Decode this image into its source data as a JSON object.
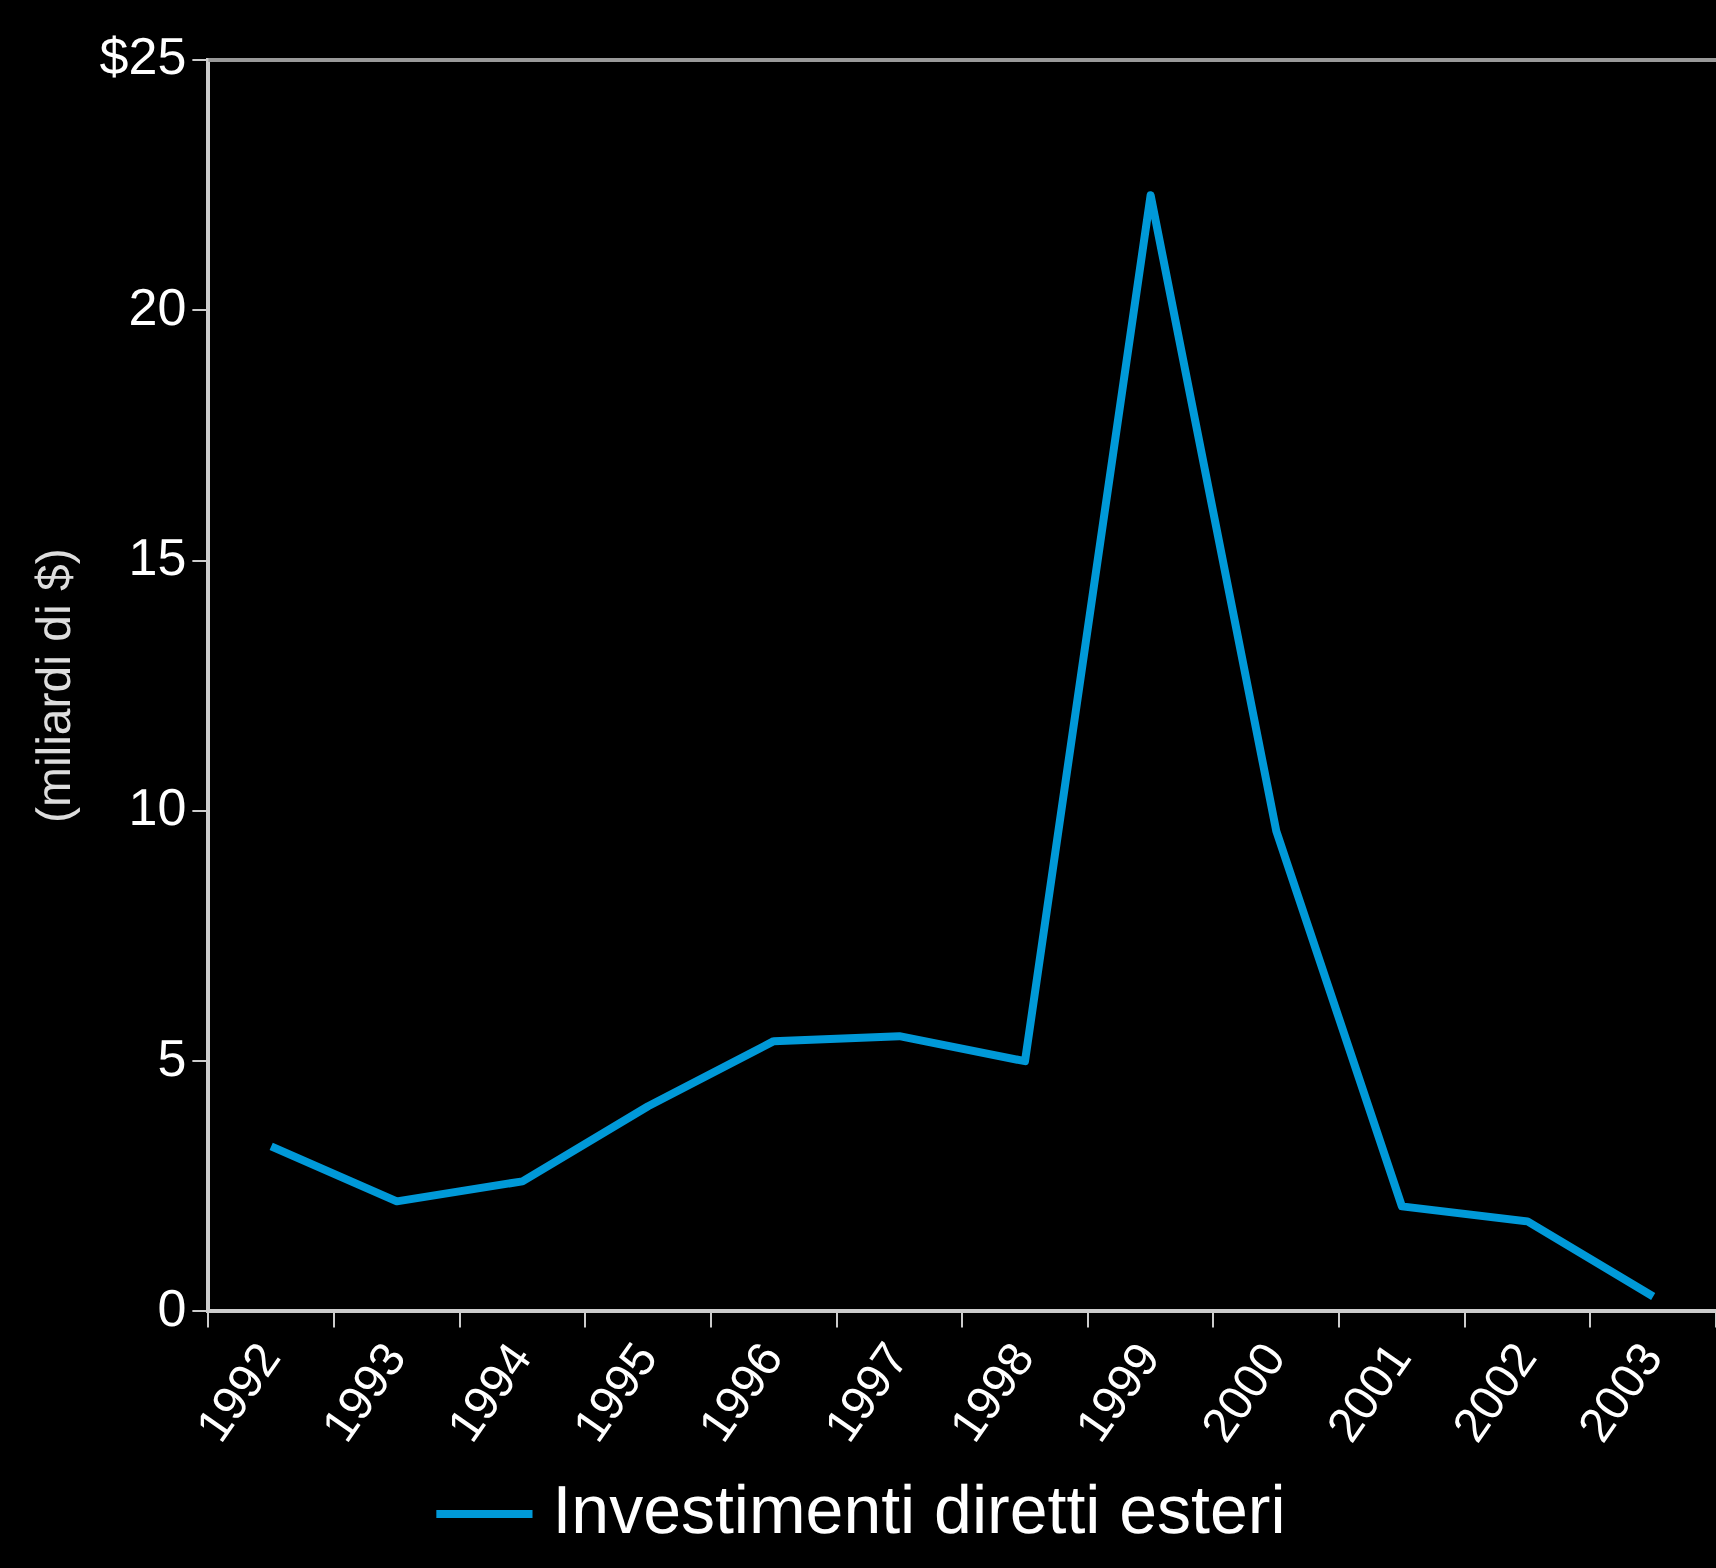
{
  "chart_data": {
    "type": "line",
    "ylabel": "(miliardi di $)",
    "categories": [
      "1992",
      "1993",
      "1994",
      "1995",
      "1996",
      "1997",
      "1998",
      "1999",
      "2000",
      "2001",
      "2002",
      "2003"
    ],
    "series": [
      {
        "name": "Investimenti diretti esteri",
        "color": "#0099d8",
        "values": [
          3.3,
          2.2,
          2.6,
          4.1,
          5.4,
          5.5,
          5.0,
          22.3,
          9.6,
          2.1,
          1.8,
          0.3
        ]
      }
    ],
    "ylim": [
      0,
      25
    ],
    "yticks": [
      0,
      5,
      10,
      15,
      20,
      {
        "value": 25,
        "label": "$25"
      }
    ],
    "grid": false,
    "legend": "bottom",
    "marker": "none",
    "line_style": "solid"
  }
}
